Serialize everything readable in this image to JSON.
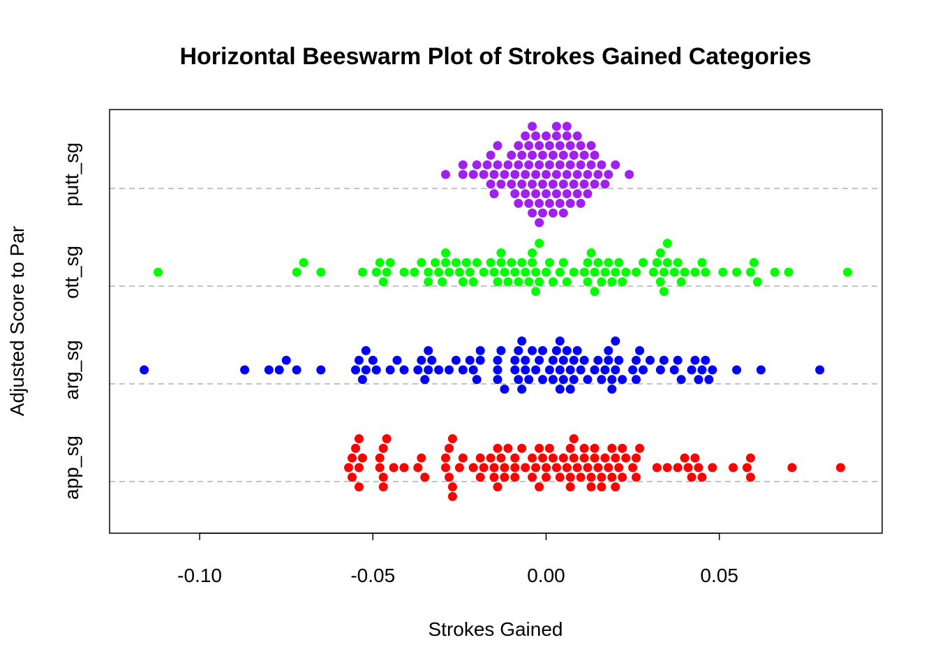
{
  "chart_data": {
    "type": "scatter",
    "subtype": "beeswarm-horizontal",
    "title": "Horizontal Beeswarm Plot of Strokes Gained Categories",
    "xlabel": "Strokes Gained",
    "ylabel": "Adjusted Score to Par",
    "xlim": [
      -0.126,
      0.097
    ],
    "x_ticks": [
      -0.1,
      -0.05,
      0.0,
      0.05
    ],
    "x_tick_labels": [
      "-0.10",
      "-0.05",
      "0.00",
      "0.05"
    ],
    "grid": "horizontal dashed at each category",
    "categories": [
      "app_sg",
      "arg_sg",
      "ott_sg",
      "putt_sg"
    ],
    "series": [
      {
        "name": "app_sg",
        "color": "#ff0000",
        "values": [
          -0.057,
          -0.056,
          -0.056,
          -0.055,
          -0.054,
          -0.054,
          -0.054,
          -0.053,
          -0.048,
          -0.048,
          -0.047,
          -0.047,
          -0.047,
          -0.046,
          -0.044,
          -0.041,
          -0.037,
          -0.036,
          -0.035,
          -0.029,
          -0.029,
          -0.028,
          -0.028,
          -0.027,
          -0.027,
          -0.027,
          -0.025,
          -0.024,
          -0.021,
          -0.019,
          -0.019,
          -0.018,
          -0.016,
          -0.015,
          -0.015,
          -0.014,
          -0.014,
          -0.013,
          -0.012,
          -0.012,
          -0.011,
          -0.009,
          -0.009,
          -0.009,
          -0.007,
          -0.006,
          -0.004,
          -0.004,
          -0.003,
          -0.002,
          -0.002,
          -0.001,
          0.0,
          0.0,
          0.001,
          0.002,
          0.003,
          0.004,
          0.005,
          0.006,
          0.007,
          0.007,
          0.007,
          0.008,
          0.008,
          0.009,
          0.01,
          0.011,
          0.011,
          0.012,
          0.013,
          0.013,
          0.014,
          0.014,
          0.015,
          0.016,
          0.016,
          0.017,
          0.018,
          0.019,
          0.019,
          0.02,
          0.02,
          0.021,
          0.022,
          0.022,
          0.023,
          0.025,
          0.026,
          0.026,
          0.027,
          0.032,
          0.035,
          0.038,
          0.04,
          0.041,
          0.042,
          0.043,
          0.044,
          0.045,
          0.048,
          0.054,
          0.058,
          0.059,
          0.059,
          0.071,
          0.085
        ]
      },
      {
        "name": "arg_sg",
        "color": "#0000ff",
        "values": [
          -0.116,
          -0.087,
          -0.08,
          -0.077,
          -0.075,
          -0.072,
          -0.065,
          -0.055,
          -0.054,
          -0.053,
          -0.052,
          -0.052,
          -0.05,
          -0.049,
          -0.045,
          -0.043,
          -0.041,
          -0.037,
          -0.036,
          -0.035,
          -0.034,
          -0.034,
          -0.033,
          -0.031,
          -0.028,
          -0.026,
          -0.024,
          -0.022,
          -0.021,
          -0.02,
          -0.019,
          -0.019,
          -0.014,
          -0.014,
          -0.014,
          -0.013,
          -0.012,
          -0.009,
          -0.009,
          -0.008,
          -0.008,
          -0.007,
          -0.007,
          -0.006,
          -0.006,
          -0.005,
          -0.004,
          -0.003,
          -0.002,
          -0.001,
          -0.001,
          0.001,
          0.002,
          0.002,
          0.003,
          0.004,
          0.004,
          0.004,
          0.005,
          0.005,
          0.006,
          0.007,
          0.007,
          0.008,
          0.008,
          0.009,
          0.01,
          0.011,
          0.012,
          0.014,
          0.015,
          0.016,
          0.017,
          0.018,
          0.018,
          0.019,
          0.019,
          0.02,
          0.02,
          0.021,
          0.022,
          0.025,
          0.026,
          0.026,
          0.027,
          0.028,
          0.03,
          0.033,
          0.034,
          0.037,
          0.038,
          0.039,
          0.042,
          0.043,
          0.044,
          0.045,
          0.046,
          0.047,
          0.048,
          0.055,
          0.062,
          0.079
        ]
      },
      {
        "name": "ott_sg",
        "color": "#00ff00",
        "values": [
          -0.112,
          -0.072,
          -0.07,
          -0.065,
          -0.053,
          -0.049,
          -0.048,
          -0.047,
          -0.046,
          -0.045,
          -0.041,
          -0.038,
          -0.036,
          -0.034,
          -0.034,
          -0.032,
          -0.031,
          -0.03,
          -0.029,
          -0.029,
          -0.028,
          -0.026,
          -0.025,
          -0.024,
          -0.023,
          -0.022,
          -0.021,
          -0.02,
          -0.018,
          -0.016,
          -0.015,
          -0.014,
          -0.013,
          -0.013,
          -0.012,
          -0.011,
          -0.01,
          -0.009,
          -0.008,
          -0.007,
          -0.006,
          -0.005,
          -0.004,
          -0.004,
          -0.003,
          -0.003,
          -0.002,
          -0.002,
          0.0,
          0.001,
          0.002,
          0.004,
          0.005,
          0.006,
          0.008,
          0.011,
          0.012,
          0.012,
          0.013,
          0.014,
          0.014,
          0.015,
          0.016,
          0.017,
          0.018,
          0.019,
          0.02,
          0.021,
          0.022,
          0.023,
          0.026,
          0.028,
          0.031,
          0.032,
          0.033,
          0.033,
          0.034,
          0.034,
          0.035,
          0.035,
          0.037,
          0.038,
          0.039,
          0.04,
          0.043,
          0.045,
          0.046,
          0.051,
          0.055,
          0.059,
          0.06,
          0.061,
          0.066,
          0.07,
          0.087
        ]
      },
      {
        "name": "putt_sg",
        "color": "#a020f0",
        "values": [
          -0.029,
          -0.024,
          -0.024,
          -0.021,
          -0.02,
          -0.018,
          -0.017,
          -0.016,
          -0.016,
          -0.015,
          -0.015,
          -0.014,
          -0.014,
          -0.013,
          -0.012,
          -0.011,
          -0.01,
          -0.01,
          -0.009,
          -0.009,
          -0.008,
          -0.008,
          -0.008,
          -0.007,
          -0.007,
          -0.006,
          -0.006,
          -0.006,
          -0.005,
          -0.005,
          -0.005,
          -0.004,
          -0.004,
          -0.004,
          -0.004,
          -0.003,
          -0.003,
          -0.003,
          -0.002,
          -0.002,
          -0.002,
          -0.002,
          -0.001,
          -0.001,
          -0.001,
          0.0,
          0.0,
          0.0,
          0.001,
          0.001,
          0.001,
          0.002,
          0.002,
          0.002,
          0.003,
          0.003,
          0.003,
          0.003,
          0.004,
          0.004,
          0.004,
          0.005,
          0.005,
          0.005,
          0.006,
          0.006,
          0.006,
          0.006,
          0.007,
          0.007,
          0.007,
          0.008,
          0.008,
          0.009,
          0.009,
          0.009,
          0.01,
          0.01,
          0.01,
          0.011,
          0.011,
          0.012,
          0.012,
          0.013,
          0.013,
          0.014,
          0.014,
          0.015,
          0.016,
          0.017,
          0.018,
          0.02,
          0.024
        ]
      }
    ]
  }
}
